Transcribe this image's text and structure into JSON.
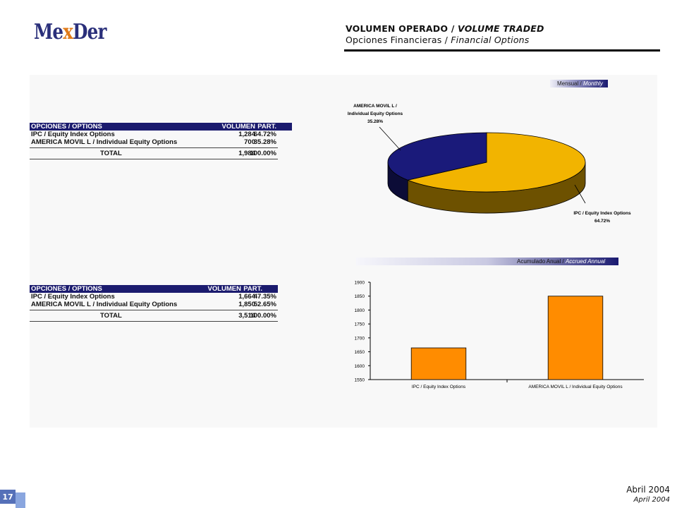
{
  "logo": {
    "prefix": "Me",
    "x": "x",
    "suffix": "Der"
  },
  "header": {
    "title_es": "VOLUMEN OPERADO",
    "sep": " / ",
    "title_en": "VOLUME TRADED",
    "subtitle_es": "Opciones Financieras",
    "subtitle_en": "Financial Options"
  },
  "monthly_table": {
    "headers": [
      "OPCIONES / OPTIONS",
      "VOLUMEN",
      "PART."
    ],
    "rows": [
      {
        "name": "IPC / Equity Index Options",
        "volume": "1,284",
        "part": "64.72%"
      },
      {
        "name": "AMERICA MOVIL L / Individual Equity Options",
        "volume": "700",
        "part": "35.28%"
      }
    ],
    "total": {
      "label": "TOTAL",
      "volume": "1,984",
      "part": "100.00%"
    }
  },
  "annual_table": {
    "headers": [
      "OPCIONES / OPTIONS",
      "VOLUMEN",
      "PART."
    ],
    "rows": [
      {
        "name": "IPC / Equity Index Options",
        "volume": "1,664",
        "part": "47.35%"
      },
      {
        "name": "AMERICA MOVIL L / Individual Equity Options",
        "volume": "1,850",
        "part": "52.65%"
      }
    ],
    "total": {
      "label": "TOTAL",
      "volume": "3,514",
      "part": "100.00%"
    }
  },
  "monthly_band": {
    "es": "Mensual / ",
    "en": "Monthly"
  },
  "annual_band": {
    "es": "Acumulado Anual / ",
    "en": "Accrued Annual"
  },
  "chart_data": [
    {
      "type": "pie",
      "categories": [
        "IPC / Equity Index Options",
        "AMERICA MOVIL L / Individual Equity Options"
      ],
      "values": [
        64.72,
        35.28
      ],
      "labels": [
        {
          "line1": "IPC / Equity Index Options",
          "line2": "64.72%"
        },
        {
          "line1": "AMERICA MOVIL L /",
          "line2": "Individual Equity Options",
          "line3": "35.28%"
        }
      ],
      "colors": [
        "#f2b400",
        "#1a1a7a"
      ],
      "style": "3d"
    },
    {
      "type": "bar",
      "categories": [
        "IPC / Equity Index Options",
        "AMERICA MOVIL L / Individual Equity Options"
      ],
      "values": [
        1664,
        1850
      ],
      "ylim": [
        1550,
        1900
      ],
      "yticks": [
        1550,
        1600,
        1650,
        1700,
        1750,
        1800,
        1850,
        1900
      ],
      "color": "#ff8c00",
      "grid": false
    }
  ],
  "footer": {
    "es": "Abril 2004",
    "en": "April 2004",
    "page": "17"
  }
}
